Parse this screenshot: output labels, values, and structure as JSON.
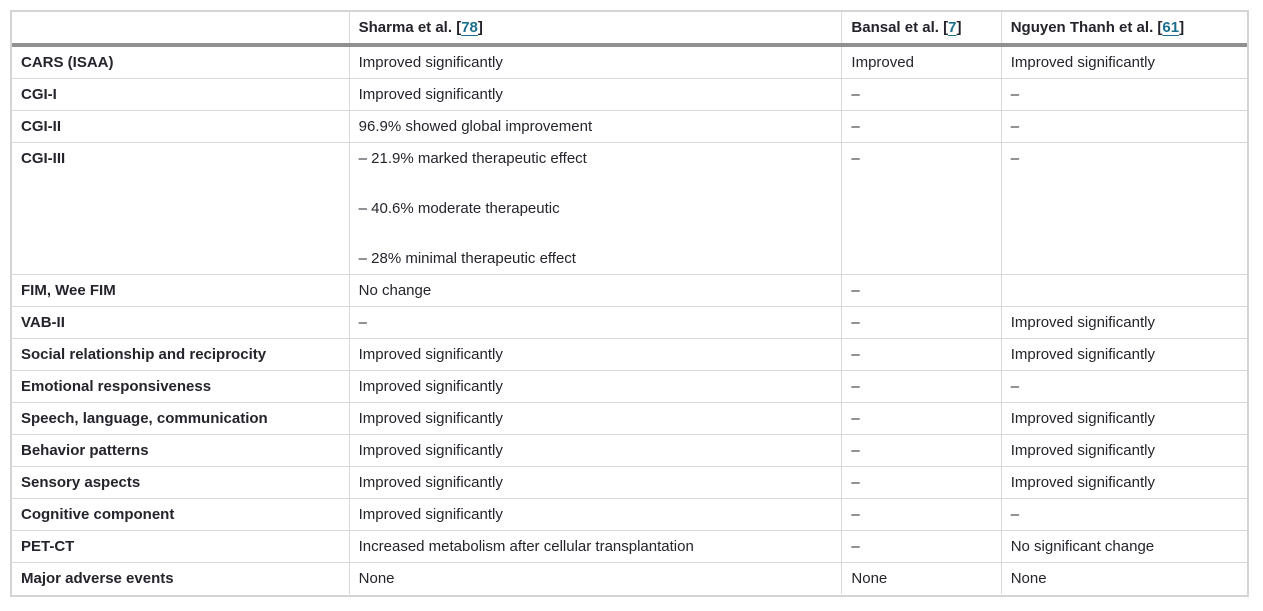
{
  "table": {
    "header": [
      {
        "label": "",
        "citation": null
      },
      {
        "label": "Sharma et al. ",
        "citation": "78"
      },
      {
        "label": "Bansal et al. ",
        "citation": "7"
      },
      {
        "label": "Nguyen Thanh et al. ",
        "citation": "61"
      }
    ],
    "rows": [
      {
        "label": "CARS (ISAA)",
        "cells": [
          [
            "Improved significantly"
          ],
          [
            "Improved"
          ],
          [
            "Improved significantly"
          ]
        ]
      },
      {
        "label": "CGI-I",
        "cells": [
          [
            "Improved significantly"
          ],
          [
            "–"
          ],
          [
            "–"
          ]
        ]
      },
      {
        "label": "CGI-II",
        "cells": [
          [
            "96.9% showed global improvement"
          ],
          [
            "–"
          ],
          [
            "–"
          ]
        ]
      },
      {
        "label": "CGI-III",
        "cells": [
          [
            "– 21.9% marked therapeutic effect",
            "– 40.6% moderate therapeutic",
            "– 28% minimal therapeutic effect"
          ],
          [
            "–"
          ],
          [
            "–"
          ]
        ]
      },
      {
        "label": "FIM, Wee FIM",
        "cells": [
          [
            "No change"
          ],
          [
            "–"
          ],
          [
            ""
          ]
        ]
      },
      {
        "label": "VAB-II",
        "cells": [
          [
            "–"
          ],
          [
            "–"
          ],
          [
            "Improved significantly"
          ]
        ]
      },
      {
        "label": "Social relationship and reciprocity",
        "cells": [
          [
            "Improved significantly"
          ],
          [
            "–"
          ],
          [
            "Improved significantly"
          ]
        ]
      },
      {
        "label": "Emotional responsiveness",
        "cells": [
          [
            "Improved significantly"
          ],
          [
            "–"
          ],
          [
            "–"
          ]
        ]
      },
      {
        "label": "Speech, language, communication",
        "cells": [
          [
            "Improved significantly"
          ],
          [
            "–"
          ],
          [
            "Improved significantly"
          ]
        ]
      },
      {
        "label": "Behavior patterns",
        "cells": [
          [
            "Improved significantly"
          ],
          [
            "–"
          ],
          [
            "Improved significantly"
          ]
        ]
      },
      {
        "label": "Sensory aspects",
        "cells": [
          [
            "Improved significantly"
          ],
          [
            "–"
          ],
          [
            "Improved significantly"
          ]
        ]
      },
      {
        "label": "Cognitive component",
        "cells": [
          [
            "Improved significantly"
          ],
          [
            "–"
          ],
          [
            "–"
          ]
        ]
      },
      {
        "label": "PET-CT",
        "cells": [
          [
            "Increased metabolism after cellular transplantation"
          ],
          [
            "–"
          ],
          [
            "No significant change"
          ]
        ]
      },
      {
        "label": "Major adverse events",
        "cells": [
          [
            "None"
          ],
          [
            "None"
          ],
          [
            "None"
          ]
        ]
      }
    ]
  },
  "colors": {
    "text": "#24242c",
    "citation_link": "#1a6e8e",
    "header_rule": "#909090",
    "row_rule": "#d9d9d9",
    "outer_frame": "#d4d4d4",
    "background": "#ffffff"
  }
}
